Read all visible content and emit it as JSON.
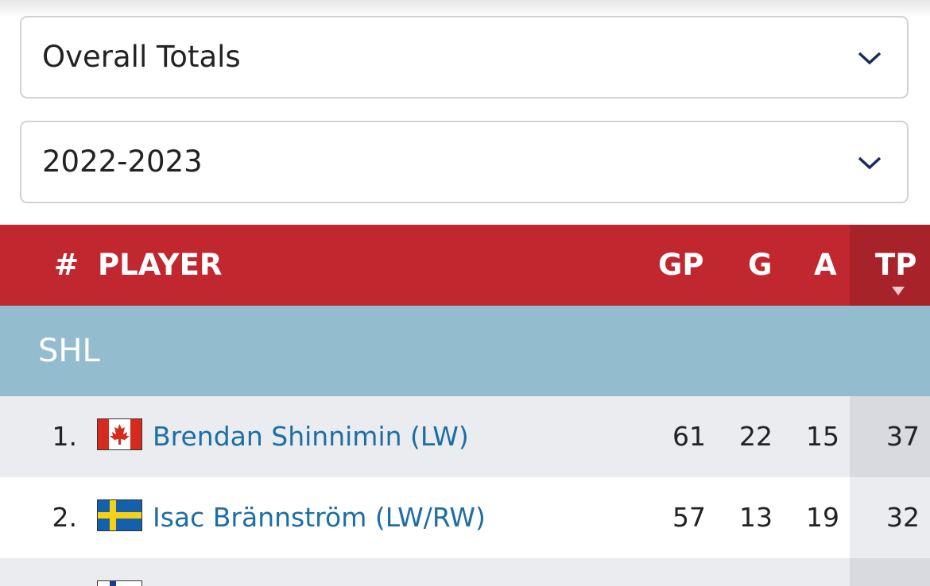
{
  "dropdowns": [
    "Overall Totals",
    "2022-2023"
  ],
  "table": {
    "headers": [
      "#",
      "PLAYER",
      "GP",
      "G",
      "A",
      "TP"
    ],
    "league": "SHL",
    "rows": [
      [
        "1.",
        "Brendan Shinnimin (LW)",
        61,
        22,
        15,
        37
      ],
      [
        "2.",
        "Isac Brännström (LW/RW)",
        57,
        13,
        19,
        32
      ]
    ]
  }
}
